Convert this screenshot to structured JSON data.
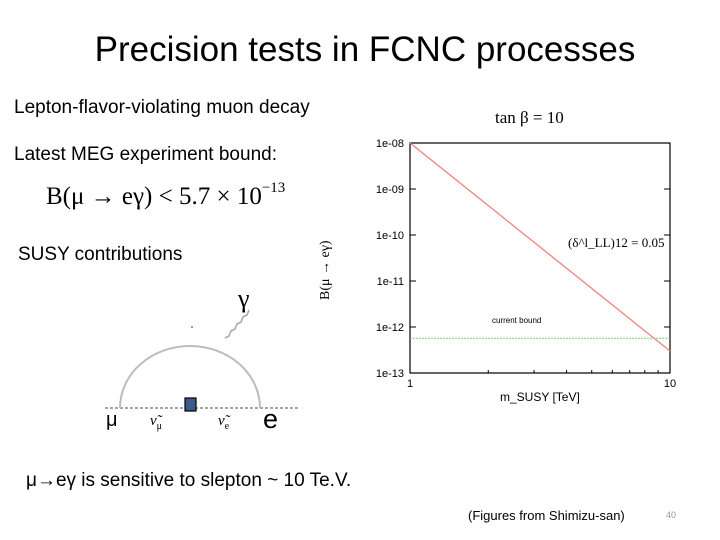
{
  "title": "Precision tests in FCNC processes",
  "subtitle": "Lepton-flavor-violating muon decay",
  "meg_label": "Latest MEG experiment bound:",
  "bound_formula": {
    "lhs": "B(μ → eγ) < 5.7 × 10",
    "exponent": "−13"
  },
  "susy_label": "SUSY contributions",
  "diagram": {
    "photon": "γ",
    "muon": "μ",
    "smuon": "ν̃",
    "smuon_sub": "μ",
    "selectron": "ν̃",
    "selectron_sub": "e",
    "electron": "e"
  },
  "statement": "μ→eγ   is sensitive to slepton ~ 10 Te.V.",
  "credit": "(Figures from Shimizu-san)",
  "page_number": "40",
  "chart_data": {
    "type": "line",
    "title": "tan β = 10",
    "xlabel": "m_SUSY [TeV]",
    "ylabel": "B(μ → eγ)",
    "x_scale": "log",
    "y_scale": "log",
    "xlim": [
      1,
      10
    ],
    "ylim": [
      1e-13,
      1e-08
    ],
    "x_ticks": [
      {
        "value": 1,
        "label": "1"
      },
      {
        "value": 10,
        "label": "10"
      }
    ],
    "y_ticks": [
      {
        "value": 1e-08,
        "label": "1e-08"
      },
      {
        "value": 1e-09,
        "label": "1e-09"
      },
      {
        "value": 1e-10,
        "label": "1e-10"
      },
      {
        "value": 1e-11,
        "label": "1e-11"
      },
      {
        "value": 1e-12,
        "label": "1e-12"
      },
      {
        "value": 1e-13,
        "label": "1e-13"
      }
    ],
    "series": [
      {
        "x": [
          1,
          10
        ],
        "y": [
          1e-08,
          3e-13
        ],
        "color": "#f08080"
      }
    ],
    "bound": {
      "label": "current bound",
      "y": 5.7e-13,
      "color": "#7fd17f"
    },
    "annotation": "(δ^l_LL)12 = 0.05"
  }
}
